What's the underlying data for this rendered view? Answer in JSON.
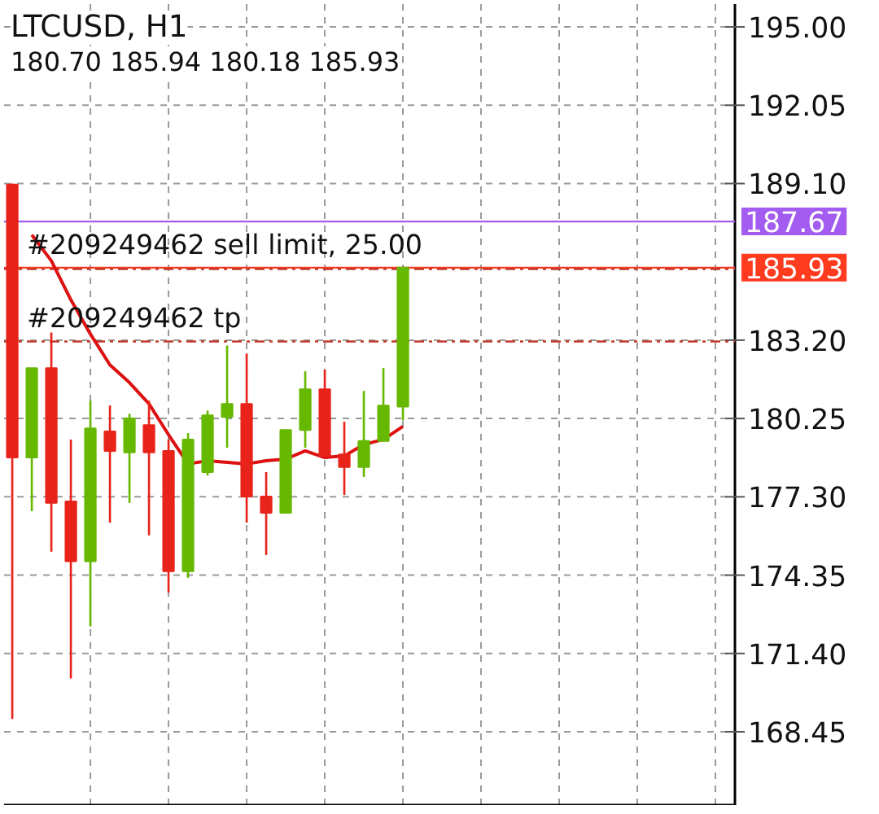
{
  "chart_data": {
    "type": "candlestick",
    "title": "LTCUSD, H1",
    "subtitle": "180.70 185.94 180.18 185.93",
    "categories": [
      null,
      null,
      null,
      null,
      null,
      null,
      null,
      null,
      null,
      null,
      null,
      null,
      null,
      null,
      null,
      null,
      null,
      null,
      null,
      null,
      null
    ],
    "ohlc": [
      [
        189.06,
        189.1,
        168.93,
        178.78
      ],
      [
        178.78,
        182.15,
        176.76,
        182.15
      ],
      [
        182.15,
        183.49,
        175.23,
        177.07
      ],
      [
        177.13,
        179.46,
        170.46,
        174.87
      ],
      [
        174.87,
        180.92,
        172.42,
        179.88
      ],
      [
        179.76,
        180.74,
        176.33,
        179.03
      ],
      [
        178.97,
        180.43,
        177.07,
        180.25
      ],
      [
        180.0,
        180.92,
        175.85,
        178.97
      ],
      [
        179.03,
        179.46,
        173.7,
        174.5
      ],
      [
        174.5,
        179.7,
        174.25,
        179.46
      ],
      [
        178.23,
        180.55,
        178.1,
        180.37
      ],
      [
        180.31,
        183.0,
        179.15,
        180.8
      ],
      [
        180.8,
        182.7,
        176.33,
        177.31
      ],
      [
        177.31,
        178.23,
        175.11,
        176.7
      ],
      [
        176.7,
        179.82,
        176.7,
        179.82
      ],
      [
        179.82,
        182.03,
        179.15,
        181.35
      ],
      [
        181.35,
        182.09,
        178.84,
        178.84
      ],
      [
        178.9,
        180.13,
        177.37,
        178.42
      ],
      [
        178.42,
        181.29,
        178.05,
        179.4
      ],
      [
        179.4,
        182.15,
        179.4,
        180.74
      ],
      [
        180.7,
        185.94,
        180.18,
        185.93
      ]
    ],
    "colors": [
      "#e8231a",
      "#66b800",
      "#e8231a",
      "#e8231a",
      "#66b800",
      "#e8231a",
      "#66b800",
      "#e8231a",
      "#e8231a",
      "#66b800",
      "#66b800",
      "#66b800",
      "#e8231a",
      "#e8231a",
      "#66b800",
      "#66b800",
      "#e8231a",
      "#e8231a",
      "#66b800",
      "#66b800",
      "#66b800"
    ],
    "series": [
      {
        "type": "line",
        "color": "#dd1111",
        "values": [
          null,
          187.17,
          186.19,
          184.72,
          183.43,
          182.27,
          181.6,
          180.8,
          179.64,
          178.54,
          178.66,
          178.6,
          178.54,
          178.66,
          178.72,
          179.03,
          178.78,
          178.84,
          179.27,
          179.46,
          179.95
        ]
      }
    ],
    "ref_lines": [
      {
        "axis": "y",
        "value": 187.67,
        "label": "187.67",
        "color": "#a35cf0",
        "line_style": "solid"
      },
      {
        "axis": "y",
        "value": 185.93,
        "label": "185.93",
        "color": "#ff3b1f",
        "line_style": "solid"
      },
      {
        "axis": "y",
        "value": 185.88,
        "label": "#209249462 sell limit, 25.00",
        "color": "#c0392b",
        "line_style": "dashed"
      },
      {
        "axis": "y",
        "value": 183.15,
        "label": "#209249462 tp",
        "color": "#c0392b",
        "line_style": "dashed"
      }
    ],
    "ylim": [
      165.69,
      195.86
    ],
    "yticks": [
      {
        "value": 195.0,
        "label": "195.00"
      },
      {
        "value": 192.05,
        "label": "192.05"
      },
      {
        "value": 189.1,
        "label": "189.10"
      },
      {
        "value": 183.2,
        "label": "183.20"
      },
      {
        "value": 180.25,
        "label": "180.25"
      },
      {
        "value": 177.3,
        "label": "177.30"
      },
      {
        "value": 174.35,
        "label": "174.35"
      },
      {
        "value": 171.4,
        "label": "171.40"
      },
      {
        "value": 168.45,
        "label": "168.45"
      }
    ],
    "tick_labels": "y",
    "grid": true
  }
}
